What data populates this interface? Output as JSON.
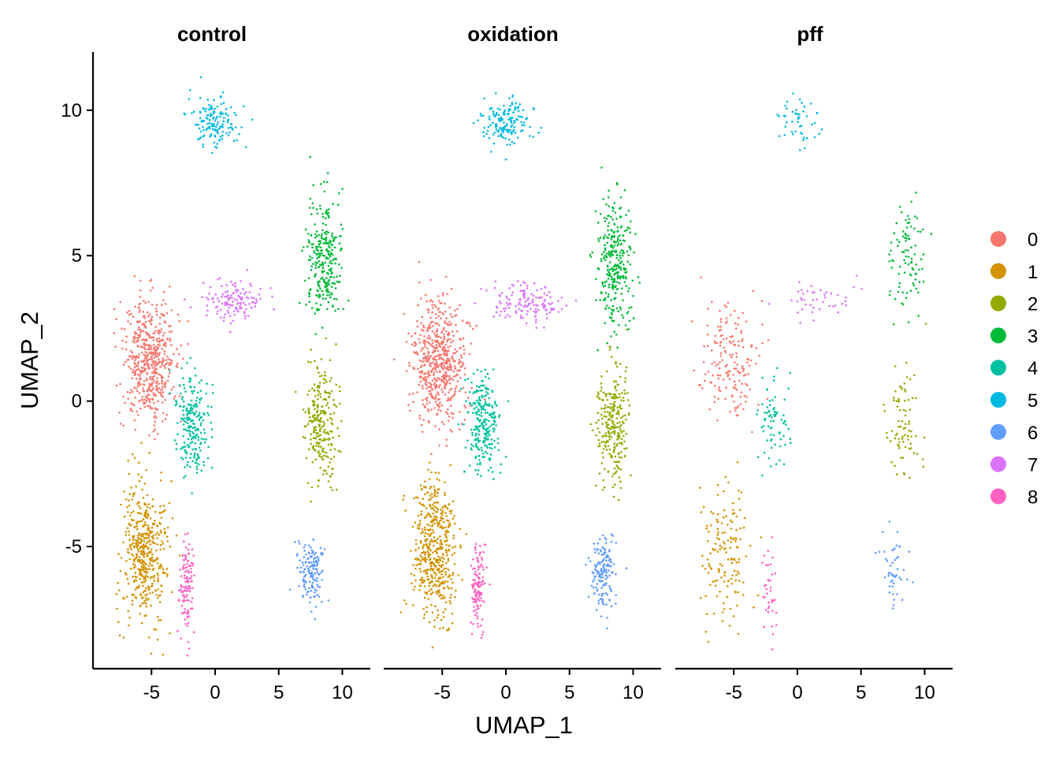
{
  "chart_data": {
    "type": "scatter",
    "xlabel": "UMAP_1",
    "ylabel": "UMAP_2",
    "xlim": [
      -9.6,
      12.2
    ],
    "ylim": [
      -9.2,
      12.0
    ],
    "xticks": [
      -5,
      0,
      5,
      10
    ],
    "xtick_labels": [
      "-5",
      "0",
      "5",
      "10"
    ],
    "yticks": [
      -5,
      0,
      5,
      10
    ],
    "ytick_labels": [
      "-5",
      "0",
      "5",
      "10"
    ],
    "grid": false,
    "legend_position": "right",
    "panels": [
      {
        "title": "control",
        "density": 1.0
      },
      {
        "title": "oxidation",
        "density": 1.05
      },
      {
        "title": "pff",
        "density": 0.32
      }
    ],
    "series": [
      {
        "name": "0",
        "color": "#F8766D",
        "center": [
          -5.2,
          1.4
        ],
        "spread": [
          1.9,
          1.9
        ],
        "count": 3200
      },
      {
        "name": "1",
        "color": "#D39200",
        "center": [
          -5.6,
          -5.2
        ],
        "spread": [
          1.6,
          2.2
        ],
        "count": 2800
      },
      {
        "name": "2",
        "color": "#93AA00",
        "center": [
          8.4,
          -0.8
        ],
        "spread": [
          1.2,
          1.9
        ],
        "count": 1500
      },
      {
        "name": "3",
        "color": "#00BA38",
        "center": [
          8.6,
          4.8
        ],
        "spread": [
          1.3,
          2.0
        ],
        "count": 1700
      },
      {
        "name": "4",
        "color": "#00C19F",
        "center": [
          -1.8,
          -0.8
        ],
        "spread": [
          1.2,
          1.5
        ],
        "count": 1400
      },
      {
        "name": "5",
        "color": "#00B9E3",
        "center": [
          0.0,
          9.6
        ],
        "spread": [
          1.7,
          0.8
        ],
        "count": 900
      },
      {
        "name": "6",
        "color": "#619CFF",
        "center": [
          7.6,
          -5.9
        ],
        "spread": [
          0.9,
          1.1
        ],
        "count": 900
      },
      {
        "name": "7",
        "color": "#DB72FB",
        "center": [
          1.6,
          3.4
        ],
        "spread": [
          2.4,
          0.6
        ],
        "count": 800
      },
      {
        "name": "8",
        "color": "#FF61C3",
        "center": [
          -2.2,
          -6.4
        ],
        "spread": [
          0.5,
          1.4
        ],
        "count": 700
      }
    ]
  }
}
